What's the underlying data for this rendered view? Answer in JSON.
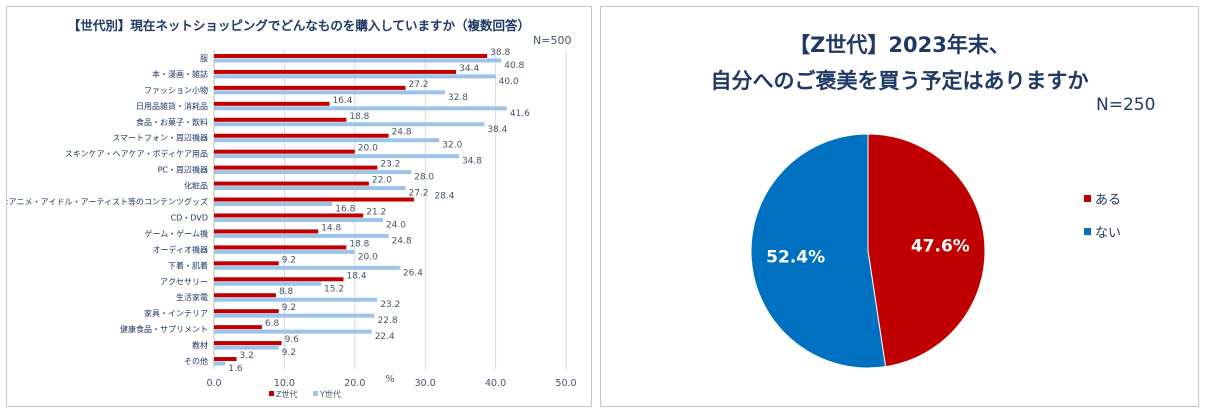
{
  "left_chart": {
    "title": "【世代別】現在ネットショッピングでどんなものを購入していますか（複数回答）",
    "n_label": "N=500"
  },
  "right_chart": {
    "title_line1": "【Z世代】2023年末、",
    "title_line2": "自分へのご褒美を買う予定はありますか",
    "n_label": "N=250"
  },
  "chart_data": [
    {
      "type": "bar",
      "orientation": "horizontal",
      "title": "【世代別】現在ネットショッピングでどんなものを購入していますか（複数回答）",
      "categories": [
        "服",
        "本・漫画・雑誌",
        "ファッション小物",
        "日用品雑貨・消耗品",
        "食品・お菓子・飲料",
        "スマートフォン・周辺機器",
        "スキンケア・ヘアケア・ボディケア用品",
        "PC・周辺機器",
        "化粧品",
        "好きなアニメ・アイドル・アーティスト等のコンテンツグッズ",
        "CD・DVD",
        "ゲーム・ゲーム機",
        "オーディオ機器",
        "下着・肌着",
        "アクセサリー",
        "生活家電",
        "家具・インテリア",
        "健康食品・サプリメント",
        "教材",
        "その他"
      ],
      "series": [
        {
          "name": "Z世代",
          "color": "#c00000",
          "values": [
            38.8,
            34.4,
            27.2,
            16.4,
            18.8,
            24.8,
            20.0,
            23.2,
            22.0,
            28.4,
            21.2,
            14.8,
            18.8,
            9.2,
            18.4,
            8.8,
            9.2,
            6.8,
            9.6,
            3.2
          ]
        },
        {
          "name": "Y世代",
          "color": "#9dc3e6",
          "values": [
            40.8,
            40.0,
            32.8,
            41.6,
            38.4,
            32.0,
            34.8,
            28.0,
            27.2,
            16.8,
            24.0,
            24.8,
            20.0,
            26.4,
            15.2,
            23.2,
            22.8,
            22.4,
            9.2,
            1.6
          ]
        }
      ],
      "xlabel": "%",
      "xlim": [
        0,
        50
      ],
      "xticks": [
        "0.0",
        "10.0",
        "20.0",
        "30.0",
        "40.0",
        "50.0"
      ],
      "grid": true,
      "legend": "bottom"
    },
    {
      "type": "pie",
      "title": "【Z世代】2023年末、自分へのご褒美を買う予定はありますか",
      "slices": [
        {
          "label": "ある",
          "value": 47.6,
          "display": "47.6%",
          "color": "#c00000"
        },
        {
          "label": "ない",
          "value": 52.4,
          "display": "52.4%",
          "color": "#0070c0"
        }
      ],
      "legend": "right"
    }
  ]
}
